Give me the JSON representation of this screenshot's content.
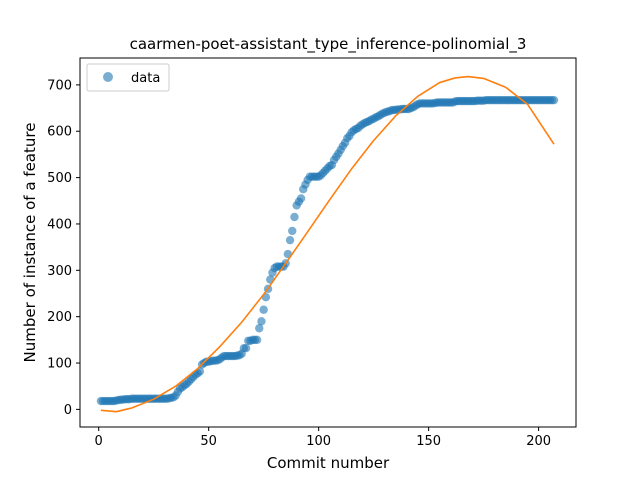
{
  "chart_data": {
    "type": "scatter",
    "title": "caarmen-poet-assistant_type_inference-polinomial_3",
    "xlabel": "Commit number",
    "ylabel": "Number of instance of a feature",
    "xlim": [
      -8.5,
      217
    ],
    "ylim": [
      -38,
      758
    ],
    "xticks": [
      0,
      50,
      100,
      150,
      200
    ],
    "yticks": [
      0,
      100,
      200,
      300,
      400,
      500,
      600,
      700
    ],
    "legend": {
      "placement": "top-left",
      "entries": [
        "data"
      ]
    },
    "grid": false,
    "colors": {
      "data": "#1f77b4",
      "fit": "#ff7f0e"
    },
    "series": [
      {
        "name": "data",
        "kind": "scatter",
        "points": [
          [
            1,
            18
          ],
          [
            2,
            18
          ],
          [
            3,
            18
          ],
          [
            4,
            18
          ],
          [
            5,
            18
          ],
          [
            6,
            18
          ],
          [
            7,
            18
          ],
          [
            8,
            19
          ],
          [
            9,
            20
          ],
          [
            10,
            21
          ],
          [
            11,
            21
          ],
          [
            12,
            22
          ],
          [
            13,
            22
          ],
          [
            14,
            22
          ],
          [
            15,
            23
          ],
          [
            16,
            23
          ],
          [
            17,
            23
          ],
          [
            18,
            23
          ],
          [
            19,
            23
          ],
          [
            20,
            23
          ],
          [
            21,
            23
          ],
          [
            22,
            23
          ],
          [
            23,
            23
          ],
          [
            24,
            23
          ],
          [
            25,
            23
          ],
          [
            26,
            23
          ],
          [
            27,
            23
          ],
          [
            28,
            23
          ],
          [
            29,
            23
          ],
          [
            30,
            23
          ],
          [
            31,
            23
          ],
          [
            32,
            24
          ],
          [
            33,
            25
          ],
          [
            34,
            26
          ],
          [
            35,
            30
          ],
          [
            36,
            38
          ],
          [
            37,
            45
          ],
          [
            38,
            48
          ],
          [
            39,
            52
          ],
          [
            40,
            55
          ],
          [
            41,
            60
          ],
          [
            42,
            65
          ],
          [
            43,
            70
          ],
          [
            44,
            75
          ],
          [
            45,
            78
          ],
          [
            46,
            82
          ],
          [
            47,
            97
          ],
          [
            48,
            100
          ],
          [
            49,
            103
          ],
          [
            50,
            103
          ],
          [
            51,
            104
          ],
          [
            52,
            105
          ],
          [
            53,
            105
          ],
          [
            54,
            106
          ],
          [
            55,
            108
          ],
          [
            56,
            112
          ],
          [
            57,
            115
          ],
          [
            58,
            115
          ],
          [
            59,
            115
          ],
          [
            60,
            115
          ],
          [
            61,
            115
          ],
          [
            62,
            115
          ],
          [
            63,
            116
          ],
          [
            64,
            117
          ],
          [
            65,
            120
          ],
          [
            66,
            132
          ],
          [
            67,
            132
          ],
          [
            68,
            148
          ],
          [
            69,
            148
          ],
          [
            70,
            150
          ],
          [
            71,
            150
          ],
          [
            72,
            150
          ],
          [
            73,
            175
          ],
          [
            74,
            190
          ],
          [
            75,
            215
          ],
          [
            76,
            242
          ],
          [
            77,
            260
          ],
          [
            78,
            280
          ],
          [
            79,
            295
          ],
          [
            80,
            305
          ],
          [
            81,
            308
          ],
          [
            82,
            308
          ],
          [
            83,
            308
          ],
          [
            84,
            308
          ],
          [
            85,
            315
          ],
          [
            86,
            335
          ],
          [
            87,
            365
          ],
          [
            88,
            385
          ],
          [
            89,
            415
          ],
          [
            90,
            440
          ],
          [
            91,
            448
          ],
          [
            92,
            455
          ],
          [
            93,
            475
          ],
          [
            94,
            485
          ],
          [
            95,
            495
          ],
          [
            96,
            502
          ],
          [
            97,
            502
          ],
          [
            98,
            502
          ],
          [
            99,
            502
          ],
          [
            100,
            502
          ],
          [
            101,
            505
          ],
          [
            102,
            510
          ],
          [
            103,
            515
          ],
          [
            104,
            520
          ],
          [
            105,
            525
          ],
          [
            106,
            527
          ],
          [
            107,
            538
          ],
          [
            108,
            545
          ],
          [
            109,
            552
          ],
          [
            110,
            560
          ],
          [
            111,
            568
          ],
          [
            112,
            575
          ],
          [
            113,
            585
          ],
          [
            114,
            590
          ],
          [
            115,
            598
          ],
          [
            116,
            602
          ],
          [
            117,
            605
          ],
          [
            118,
            607
          ],
          [
            119,
            612
          ],
          [
            120,
            615
          ],
          [
            121,
            618
          ],
          [
            122,
            620
          ],
          [
            123,
            622
          ],
          [
            124,
            625
          ],
          [
            125,
            627
          ],
          [
            126,
            630
          ],
          [
            127,
            632
          ],
          [
            128,
            635
          ],
          [
            129,
            638
          ],
          [
            130,
            640
          ],
          [
            131,
            642
          ],
          [
            132,
            643
          ],
          [
            133,
            645
          ],
          [
            134,
            646
          ],
          [
            135,
            646
          ],
          [
            136,
            647
          ],
          [
            137,
            647
          ],
          [
            138,
            648
          ],
          [
            139,
            648
          ],
          [
            140,
            648
          ],
          [
            141,
            648
          ],
          [
            142,
            650
          ],
          [
            143,
            652
          ],
          [
            144,
            655
          ],
          [
            145,
            658
          ],
          [
            146,
            660
          ],
          [
            147,
            660
          ],
          [
            148,
            660
          ],
          [
            149,
            660
          ],
          [
            150,
            660
          ],
          [
            151,
            660
          ],
          [
            152,
            660
          ],
          [
            153,
            661
          ],
          [
            154,
            662
          ],
          [
            155,
            662
          ],
          [
            156,
            662
          ],
          [
            157,
            662
          ],
          [
            158,
            662
          ],
          [
            159,
            662
          ],
          [
            160,
            662
          ],
          [
            161,
            662
          ],
          [
            162,
            664
          ],
          [
            163,
            665
          ],
          [
            164,
            665
          ],
          [
            165,
            665
          ],
          [
            166,
            665
          ],
          [
            167,
            665
          ],
          [
            168,
            665
          ],
          [
            169,
            665
          ],
          [
            170,
            665
          ],
          [
            171,
            665
          ],
          [
            172,
            666
          ],
          [
            173,
            666
          ],
          [
            174,
            666
          ],
          [
            175,
            666
          ],
          [
            176,
            667
          ],
          [
            177,
            667
          ],
          [
            178,
            667
          ],
          [
            179,
            667
          ],
          [
            180,
            667
          ],
          [
            181,
            667
          ],
          [
            182,
            667
          ],
          [
            183,
            667
          ],
          [
            184,
            667
          ],
          [
            185,
            667
          ],
          [
            186,
            667
          ],
          [
            187,
            667
          ],
          [
            188,
            667
          ],
          [
            189,
            667
          ],
          [
            190,
            667
          ],
          [
            191,
            667
          ],
          [
            192,
            667
          ],
          [
            193,
            667
          ],
          [
            194,
            667
          ],
          [
            195,
            667
          ],
          [
            196,
            667
          ],
          [
            197,
            667
          ],
          [
            198,
            667
          ],
          [
            199,
            667
          ],
          [
            200,
            667
          ],
          [
            201,
            667
          ],
          [
            202,
            667
          ],
          [
            203,
            667
          ],
          [
            204,
            667
          ],
          [
            205,
            667
          ],
          [
            206,
            667
          ],
          [
            207,
            667
          ]
        ]
      },
      {
        "kind": "line",
        "points": [
          [
            1,
            -2
          ],
          [
            8,
            -5
          ],
          [
            15,
            3
          ],
          [
            25,
            22
          ],
          [
            35,
            50
          ],
          [
            45,
            88
          ],
          [
            55,
            135
          ],
          [
            65,
            188
          ],
          [
            75,
            248
          ],
          [
            85,
            315
          ],
          [
            95,
            383
          ],
          [
            105,
            452
          ],
          [
            115,
            519
          ],
          [
            125,
            580
          ],
          [
            135,
            633
          ],
          [
            145,
            675
          ],
          [
            155,
            705
          ],
          [
            162,
            715
          ],
          [
            168,
            718
          ],
          [
            175,
            714
          ],
          [
            185,
            695
          ],
          [
            195,
            658
          ],
          [
            207,
            572
          ]
        ]
      }
    ]
  }
}
